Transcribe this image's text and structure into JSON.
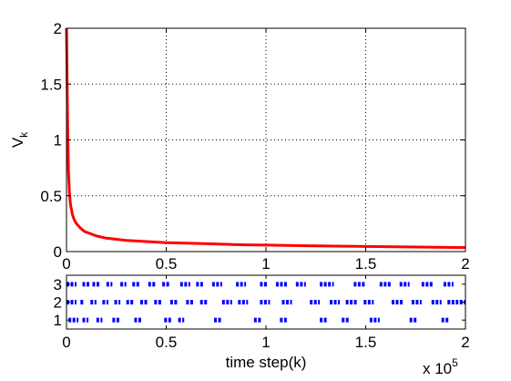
{
  "chart_data": [
    {
      "type": "line",
      "title": "",
      "ylabel": "V",
      "ylabel_subscript": "k",
      "xlabel": "",
      "xlim": [
        0,
        200000
      ],
      "ylim": [
        0,
        2
      ],
      "grid": true,
      "x_ticks": [
        0,
        50000,
        100000,
        150000,
        200000
      ],
      "x_tick_labels": [
        "0",
        "0.5",
        "1",
        "1.5",
        "2"
      ],
      "y_ticks": [
        0,
        0.5,
        1,
        1.5,
        2
      ],
      "y_tick_labels": [
        "0",
        "0.5",
        "1",
        "1.5",
        "2"
      ],
      "line_color": "#ff0000",
      "series": [
        {
          "x": [
            0,
            300,
            600,
            1000,
            1500,
            2000,
            3000,
            4000,
            5000,
            7000,
            9000,
            12000,
            15000,
            20000,
            25000,
            30000,
            40000,
            50000,
            60000,
            70000,
            80000,
            90000,
            100000,
            110000,
            120000,
            130000,
            140000,
            150000,
            160000,
            170000,
            180000,
            190000,
            200000
          ],
          "values": [
            2.0,
            1.55,
            1.12,
            0.72,
            0.52,
            0.42,
            0.33,
            0.28,
            0.25,
            0.21,
            0.18,
            0.16,
            0.14,
            0.12,
            0.11,
            0.1,
            0.09,
            0.08,
            0.075,
            0.07,
            0.065,
            0.06,
            0.058,
            0.055,
            0.052,
            0.05,
            0.048,
            0.046,
            0.044,
            0.042,
            0.04,
            0.038,
            0.036
          ]
        }
      ]
    },
    {
      "type": "scatter",
      "title": "",
      "xlabel": "time step(k)",
      "ylabel": "",
      "xlim": [
        0,
        200000
      ],
      "ylim": [
        0.5,
        3.5
      ],
      "grid": false,
      "x_ticks": [
        0,
        50000,
        100000,
        150000,
        200000
      ],
      "x_tick_labels": [
        "0",
        "0.5",
        "1",
        "1.5",
        "2"
      ],
      "y_ticks": [
        1,
        2,
        3
      ],
      "y_tick_labels": [
        "1",
        "2",
        "3"
      ],
      "x_multiplier_base": "x 10",
      "x_multiplier_exponent": "5",
      "marker_color": "#0000ff",
      "series": [
        {
          "y": 1,
          "segments": [
            [
              1000,
              6000
            ],
            [
              8000,
              11000
            ],
            [
              15000,
              18000
            ],
            [
              23000,
              27000
            ],
            [
              34000,
              38000
            ],
            [
              49000,
              53000
            ],
            [
              56000,
              59000
            ],
            [
              74000,
              78000
            ],
            [
              94000,
              98000
            ],
            [
              107000,
              111000
            ],
            [
              127000,
              131000
            ],
            [
              138000,
              142000
            ],
            [
              152000,
              157000
            ],
            [
              172000,
              176000
            ],
            [
              188000,
              192000
            ]
          ]
        },
        {
          "y": 2,
          "segments": [
            [
              0,
              5000
            ],
            [
              7000,
              9000
            ],
            [
              12000,
              15000
            ],
            [
              18000,
              21000
            ],
            [
              24000,
              27000
            ],
            [
              30000,
              34000
            ],
            [
              37000,
              41000
            ],
            [
              44000,
              48000
            ],
            [
              52000,
              56000
            ],
            [
              60000,
              64000
            ],
            [
              67000,
              71000
            ],
            [
              78000,
              83000
            ],
            [
              86000,
              91000
            ],
            [
              97000,
              102000
            ],
            [
              108000,
              113000
            ],
            [
              122000,
              127000
            ],
            [
              132000,
              137000
            ],
            [
              140000,
              146000
            ],
            [
              149000,
              154000
            ],
            [
              163000,
              169000
            ],
            [
              173000,
              178000
            ],
            [
              183000,
              188000
            ],
            [
              191000,
              200000
            ]
          ]
        },
        {
          "y": 3,
          "segments": [
            [
              0,
              5000
            ],
            [
              8000,
              12000
            ],
            [
              13000,
              17000
            ],
            [
              20000,
              23000
            ],
            [
              27000,
              30000
            ],
            [
              33000,
              37000
            ],
            [
              41000,
              45000
            ],
            [
              48000,
              52000
            ],
            [
              57000,
              62000
            ],
            [
              65000,
              69000
            ],
            [
              73000,
              78000
            ],
            [
              85000,
              90000
            ],
            [
              97000,
              101000
            ],
            [
              105000,
              111000
            ],
            [
              115000,
              120000
            ],
            [
              127000,
              134000
            ],
            [
              144000,
              150000
            ],
            [
              157000,
              163000
            ],
            [
              167000,
              172000
            ],
            [
              178000,
              184000
            ],
            [
              189000,
              194000
            ]
          ]
        }
      ]
    }
  ]
}
